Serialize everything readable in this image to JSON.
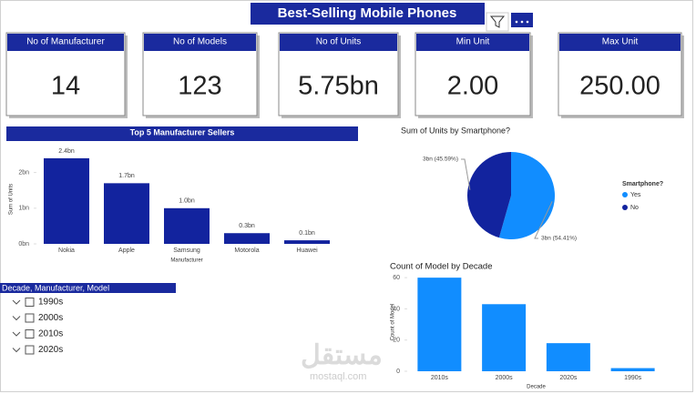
{
  "header": {
    "title": "Best-Selling Mobile Phones"
  },
  "cards": [
    {
      "label": "No of Manufacturer",
      "value": "14"
    },
    {
      "label": "No of Models",
      "value": "123"
    },
    {
      "label": "No of Units",
      "value": "5.75bn"
    },
    {
      "label": "Min Unit",
      "value": "2.00"
    },
    {
      "label": "Max Unit",
      "value": "250.00"
    }
  ],
  "chart_data": [
    {
      "type": "bar",
      "title": "Top 5 Manufacturer Sellers",
      "xlabel": "Manufacturer",
      "ylabel": "Sum of Units",
      "categories": [
        "Nokia",
        "Apple",
        "Samsung",
        "Motorola",
        "Huawei"
      ],
      "values": [
        2.4,
        1.7,
        1.0,
        0.3,
        0.1
      ],
      "value_labels": [
        "2.4bn",
        "1.7bn",
        "1.0bn",
        "0.3bn",
        "0.1bn"
      ],
      "color": "#12239e",
      "ylim": [
        0,
        2.5
      ],
      "yticks": [
        {
          "value": 0,
          "label": "0bn"
        },
        {
          "value": 1,
          "label": "1bn"
        },
        {
          "value": 2,
          "label": "2bn"
        }
      ]
    },
    {
      "type": "pie",
      "title": "Sum of Units by Smartphone?",
      "legend_title": "Smartphone?",
      "categories": [
        "Yes",
        "No"
      ],
      "values": [
        54.41,
        45.59
      ],
      "value_labels": [
        "3bn (54.41%)",
        "3bn (45.59%)"
      ],
      "colors": [
        "#118dff",
        "#12239e"
      ],
      "legend": "right"
    },
    {
      "type": "bar",
      "title": "Count of Model by Decade",
      "xlabel": "Decade",
      "ylabel": "Count of Model",
      "categories": [
        "2010s",
        "2000s",
        "2020s",
        "1990s"
      ],
      "values": [
        60,
        43,
        18,
        2
      ],
      "color": "#118dff",
      "ylim": [
        0,
        63
      ],
      "yticks": [
        0,
        20,
        40,
        60
      ]
    }
  ],
  "slicer": {
    "title": "Decade, Manufacturer, Model",
    "items": [
      "1990s",
      "2000s",
      "2010s",
      "2020s"
    ]
  },
  "watermark": {
    "arabic": "مستقل",
    "latin": "mostaql.com"
  }
}
